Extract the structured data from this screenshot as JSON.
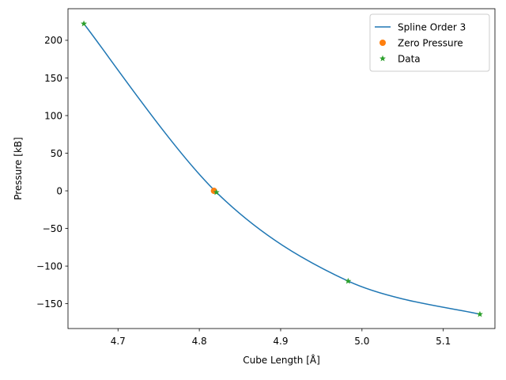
{
  "chart_data": {
    "type": "line",
    "title": "",
    "xlabel": "Cube Length [Å]",
    "ylabel": "Pressure [kB]",
    "xlim": [
      4.6385,
      5.1635
    ],
    "ylim": [
      -183,
      242
    ],
    "xticks": [
      4.7,
      4.8,
      4.9,
      5.0,
      5.1
    ],
    "xtick_labels": [
      "4.7",
      "4.8",
      "4.9",
      "5.0",
      "5.1"
    ],
    "yticks": [
      -150,
      -100,
      -50,
      0,
      50,
      100,
      150,
      200
    ],
    "ytick_labels": [
      "−150",
      "−100",
      "−50",
      "0",
      "50",
      "100",
      "150",
      "200"
    ],
    "grid": false,
    "legend_position": "top-right",
    "series": [
      {
        "name": "Spline Order 3",
        "kind": "line",
        "color": "#1f77b4",
        "x": [
          4.658,
          4.821,
          4.983,
          5.145
        ],
        "y": [
          222,
          -2,
          -120,
          -164
        ]
      },
      {
        "name": "Zero Pressure",
        "kind": "scatter",
        "marker": "circle",
        "color": "#ff7f0e",
        "x": [
          4.818
        ],
        "y": [
          0
        ]
      },
      {
        "name": "Data",
        "kind": "scatter",
        "marker": "star",
        "color": "#2ca02c",
        "x": [
          4.658,
          4.821,
          4.983,
          5.145
        ],
        "y": [
          222,
          -2,
          -120,
          -164
        ]
      }
    ]
  }
}
